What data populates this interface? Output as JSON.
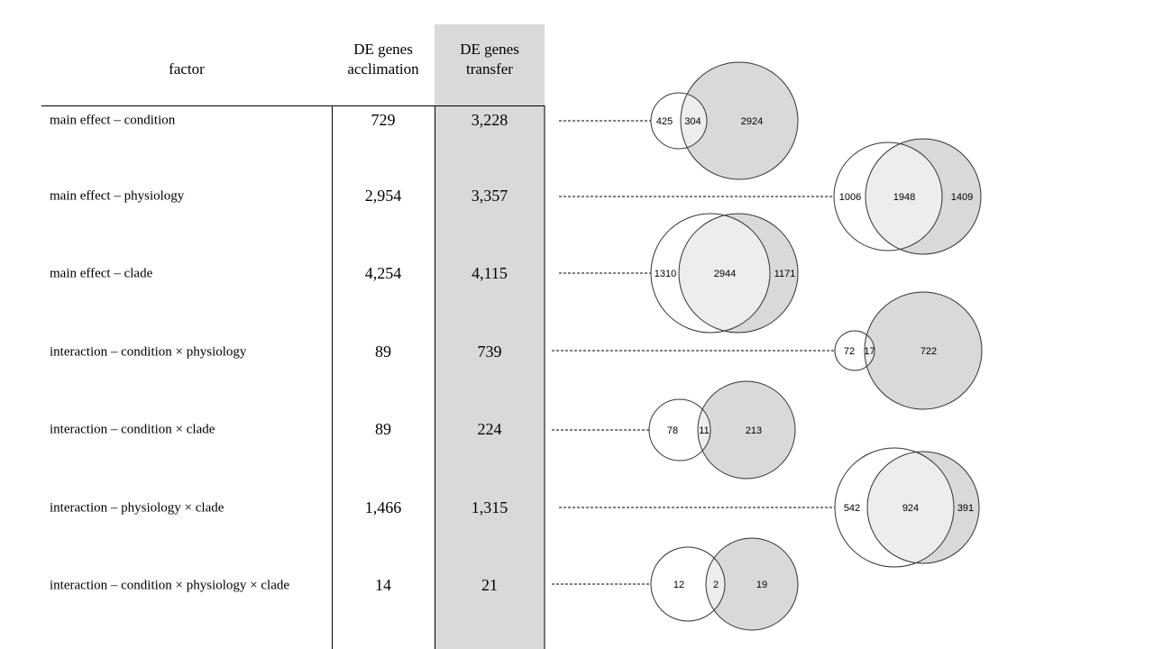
{
  "table": {
    "header_factor": "factor",
    "header_acclimation": [
      "DE genes",
      "acclimation"
    ],
    "header_transfer": [
      "DE genes",
      "transfer"
    ],
    "rows": [
      {
        "factor": "main effect – condition",
        "acclimation": "729",
        "transfer": "3,228"
      },
      {
        "factor": "main effect – physiology",
        "acclimation": "2,954",
        "transfer": "3,357"
      },
      {
        "factor": "main effect – clade",
        "acclimation": "4,254",
        "transfer": "4,115"
      },
      {
        "factor": "interaction – condition × physiology",
        "acclimation": "89",
        "transfer": "739"
      },
      {
        "factor": "interaction – condition × clade",
        "acclimation": "89",
        "transfer": "224"
      },
      {
        "factor": "interaction – physiology × clade",
        "acclimation": "1,466",
        "transfer": "1,315"
      },
      {
        "factor": "interaction – condition × physiology × clade",
        "acclimation": "14",
        "transfer": "21"
      }
    ]
  },
  "venns": [
    {
      "left_only": "425",
      "overlap": "304",
      "right_only": "2924"
    },
    {
      "left_only": "1006",
      "overlap": "1948",
      "right_only": "1409"
    },
    {
      "left_only": "1310",
      "overlap": "2944",
      "right_only": "1171"
    },
    {
      "left_only": "72",
      "overlap": "17",
      "right_only": "722"
    },
    {
      "left_only": "78",
      "overlap": "11",
      "right_only": "213"
    },
    {
      "left_only": "542",
      "overlap": "924",
      "right_only": "391"
    },
    {
      "left_only": "12",
      "overlap": "2",
      "right_only": "19"
    }
  ],
  "colors": {
    "transfer_column": "#d9d9d9",
    "venn_right": "#d9d9d9",
    "venn_overlap": "#ededed",
    "line": "#000000"
  }
}
